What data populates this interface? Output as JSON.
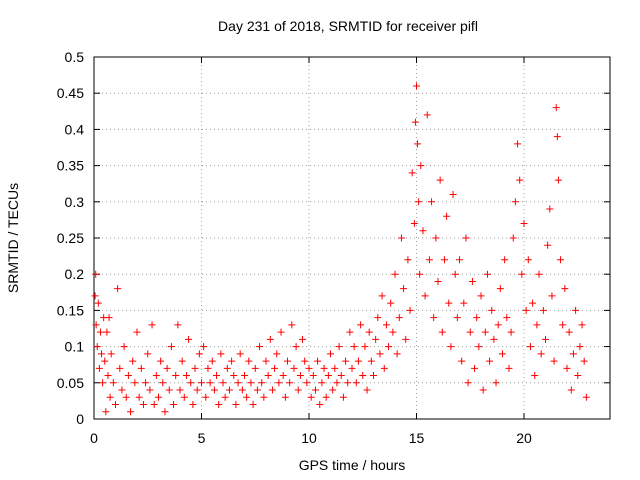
{
  "chart_data": {
    "type": "scatter",
    "title": "Day 231 of 2018, SRMTID for receiver pifl",
    "xlabel": "GPS time / hours",
    "ylabel": "SRMTID / TECUs",
    "xlim": [
      0,
      24
    ],
    "ylim": [
      0,
      0.5
    ],
    "xticks": [
      0,
      5,
      10,
      15,
      20
    ],
    "xtick_labels": [
      "0",
      "5",
      "10",
      "15",
      "20"
    ],
    "yticks": [
      0,
      0.05,
      0.1,
      0.15,
      0.2,
      0.25,
      0.3,
      0.35,
      0.4,
      0.45,
      0.5
    ],
    "ytick_labels": [
      "0",
      "0.05",
      "0.1",
      "0.15",
      "0.2",
      "0.25",
      "0.3",
      "0.35",
      "0.4",
      "0.45",
      "0.5"
    ],
    "grid": true,
    "marker": "plus",
    "color": "#ff0000",
    "series": [
      {
        "points": [
          [
            0.05,
            0.17
          ],
          [
            0.08,
            0.2
          ],
          [
            0.1,
            0.13
          ],
          [
            0.15,
            0.1
          ],
          [
            0.2,
            0.16
          ],
          [
            0.25,
            0.07
          ],
          [
            0.3,
            0.12
          ],
          [
            0.35,
            0.09
          ],
          [
            0.4,
            0.05
          ],
          [
            0.45,
            0.14
          ],
          [
            0.5,
            0.08
          ],
          [
            0.55,
            0.01
          ],
          [
            0.6,
            0.12
          ],
          [
            0.65,
            0.06
          ],
          [
            0.7,
            0.14
          ],
          [
            0.75,
            0.03
          ],
          [
            0.8,
            0.09
          ],
          [
            0.9,
            0.05
          ],
          [
            1.0,
            0.02
          ],
          [
            1.1,
            0.18
          ],
          [
            1.2,
            0.07
          ],
          [
            1.3,
            0.04
          ],
          [
            1.4,
            0.1
          ],
          [
            1.5,
            0.03
          ],
          [
            1.6,
            0.06
          ],
          [
            1.7,
            0.01
          ],
          [
            1.8,
            0.08
          ],
          [
            1.9,
            0.05
          ],
          [
            2.0,
            0.12
          ],
          [
            2.1,
            0.03
          ],
          [
            2.2,
            0.07
          ],
          [
            2.3,
            0.02
          ],
          [
            2.4,
            0.05
          ],
          [
            2.5,
            0.09
          ],
          [
            2.6,
            0.04
          ],
          [
            2.7,
            0.13
          ],
          [
            2.8,
            0.02
          ],
          [
            2.9,
            0.06
          ],
          [
            3.0,
            0.03
          ],
          [
            3.1,
            0.08
          ],
          [
            3.2,
            0.05
          ],
          [
            3.3,
            0.01
          ],
          [
            3.4,
            0.07
          ],
          [
            3.5,
            0.04
          ],
          [
            3.6,
            0.1
          ],
          [
            3.7,
            0.02
          ],
          [
            3.8,
            0.06
          ],
          [
            3.9,
            0.13
          ],
          [
            4.0,
            0.04
          ],
          [
            4.1,
            0.08
          ],
          [
            4.2,
            0.03
          ],
          [
            4.3,
            0.06
          ],
          [
            4.4,
            0.11
          ],
          [
            4.5,
            0.05
          ],
          [
            4.6,
            0.02
          ],
          [
            4.7,
            0.07
          ],
          [
            4.8,
            0.04
          ],
          [
            4.9,
            0.09
          ],
          [
            5.0,
            0.05
          ],
          [
            5.1,
            0.1
          ],
          [
            5.2,
            0.03
          ],
          [
            5.3,
            0.07
          ],
          [
            5.4,
            0.05
          ],
          [
            5.5,
            0.08
          ],
          [
            5.6,
            0.04
          ],
          [
            5.7,
            0.06
          ],
          [
            5.8,
            0.02
          ],
          [
            5.9,
            0.09
          ],
          [
            6.0,
            0.05
          ],
          [
            6.1,
            0.03
          ],
          [
            6.2,
            0.07
          ],
          [
            6.3,
            0.04
          ],
          [
            6.4,
            0.08
          ],
          [
            6.5,
            0.06
          ],
          [
            6.6,
            0.02
          ],
          [
            6.7,
            0.05
          ],
          [
            6.8,
            0.09
          ],
          [
            6.9,
            0.04
          ],
          [
            7.0,
            0.06
          ],
          [
            7.1,
            0.03
          ],
          [
            7.2,
            0.08
          ],
          [
            7.3,
            0.05
          ],
          [
            7.4,
            0.02
          ],
          [
            7.5,
            0.07
          ],
          [
            7.6,
            0.04
          ],
          [
            7.7,
            0.1
          ],
          [
            7.8,
            0.05
          ],
          [
            7.9,
            0.03
          ],
          [
            8.0,
            0.08
          ],
          [
            8.1,
            0.06
          ],
          [
            8.2,
            0.11
          ],
          [
            8.3,
            0.04
          ],
          [
            8.4,
            0.07
          ],
          [
            8.5,
            0.09
          ],
          [
            8.6,
            0.05
          ],
          [
            8.7,
            0.12
          ],
          [
            8.8,
            0.06
          ],
          [
            8.9,
            0.03
          ],
          [
            9.0,
            0.08
          ],
          [
            9.1,
            0.05
          ],
          [
            9.2,
            0.13
          ],
          [
            9.3,
            0.07
          ],
          [
            9.4,
            0.1
          ],
          [
            9.5,
            0.04
          ],
          [
            9.6,
            0.06
          ],
          [
            9.7,
            0.11
          ],
          [
            9.8,
            0.08
          ],
          [
            9.9,
            0.05
          ],
          [
            10.0,
            0.07
          ],
          [
            10.1,
            0.03
          ],
          [
            10.2,
            0.06
          ],
          [
            10.3,
            0.04
          ],
          [
            10.4,
            0.08
          ],
          [
            10.5,
            0.02
          ],
          [
            10.6,
            0.05
          ],
          [
            10.7,
            0.07
          ],
          [
            10.8,
            0.03
          ],
          [
            10.9,
            0.06
          ],
          [
            11.0,
            0.09
          ],
          [
            11.1,
            0.04
          ],
          [
            11.2,
            0.07
          ],
          [
            11.3,
            0.05
          ],
          [
            11.4,
            0.1
          ],
          [
            11.5,
            0.06
          ],
          [
            11.6,
            0.03
          ],
          [
            11.7,
            0.08
          ],
          [
            11.8,
            0.05
          ],
          [
            11.9,
            0.12
          ],
          [
            12.0,
            0.07
          ],
          [
            12.1,
            0.1
          ],
          [
            12.2,
            0.05
          ],
          [
            12.3,
            0.08
          ],
          [
            12.4,
            0.13
          ],
          [
            12.5,
            0.06
          ],
          [
            12.6,
            0.1
          ],
          [
            12.7,
            0.04
          ],
          [
            12.8,
            0.12
          ],
          [
            12.9,
            0.08
          ],
          [
            13.0,
            0.06
          ],
          [
            13.1,
            0.11
          ],
          [
            13.2,
            0.14
          ],
          [
            13.3,
            0.09
          ],
          [
            13.4,
            0.17
          ],
          [
            13.5,
            0.07
          ],
          [
            13.6,
            0.13
          ],
          [
            13.7,
            0.1
          ],
          [
            13.8,
            0.16
          ],
          [
            13.9,
            0.12
          ],
          [
            14.0,
            0.2
          ],
          [
            14.1,
            0.09
          ],
          [
            14.2,
            0.14
          ],
          [
            14.3,
            0.25
          ],
          [
            14.4,
            0.18
          ],
          [
            14.5,
            0.11
          ],
          [
            14.6,
            0.22
          ],
          [
            14.7,
            0.15
          ],
          [
            14.8,
            0.34
          ],
          [
            14.9,
            0.27
          ],
          [
            14.95,
            0.41
          ],
          [
            15.0,
            0.46
          ],
          [
            15.05,
            0.38
          ],
          [
            15.1,
            0.3
          ],
          [
            15.15,
            0.2
          ],
          [
            15.2,
            0.35
          ],
          [
            15.3,
            0.26
          ],
          [
            15.4,
            0.17
          ],
          [
            15.5,
            0.42
          ],
          [
            15.6,
            0.22
          ],
          [
            15.7,
            0.3
          ],
          [
            15.8,
            0.14
          ],
          [
            15.9,
            0.25
          ],
          [
            16.0,
            0.19
          ],
          [
            16.1,
            0.33
          ],
          [
            16.2,
            0.12
          ],
          [
            16.3,
            0.22
          ],
          [
            16.4,
            0.28
          ],
          [
            16.5,
            0.16
          ],
          [
            16.6,
            0.1
          ],
          [
            16.7,
            0.31
          ],
          [
            16.8,
            0.2
          ],
          [
            16.9,
            0.14
          ],
          [
            17.0,
            0.22
          ],
          [
            17.1,
            0.08
          ],
          [
            17.2,
            0.16
          ],
          [
            17.3,
            0.25
          ],
          [
            17.4,
            0.05
          ],
          [
            17.5,
            0.12
          ],
          [
            17.6,
            0.19
          ],
          [
            17.7,
            0.07
          ],
          [
            17.8,
            0.14
          ],
          [
            17.9,
            0.1
          ],
          [
            18.0,
            0.17
          ],
          [
            18.1,
            0.04
          ],
          [
            18.2,
            0.12
          ],
          [
            18.3,
            0.2
          ],
          [
            18.4,
            0.08
          ],
          [
            18.5,
            0.15
          ],
          [
            18.6,
            0.11
          ],
          [
            18.7,
            0.05
          ],
          [
            18.8,
            0.13
          ],
          [
            18.9,
            0.18
          ],
          [
            19.0,
            0.09
          ],
          [
            19.1,
            0.22
          ],
          [
            19.2,
            0.14
          ],
          [
            19.3,
            0.07
          ],
          [
            19.4,
            0.12
          ],
          [
            19.5,
            0.25
          ],
          [
            19.6,
            0.3
          ],
          [
            19.7,
            0.38
          ],
          [
            19.8,
            0.33
          ],
          [
            19.9,
            0.2
          ],
          [
            20.0,
            0.27
          ],
          [
            20.1,
            0.15
          ],
          [
            20.2,
            0.22
          ],
          [
            20.3,
            0.1
          ],
          [
            20.4,
            0.16
          ],
          [
            20.5,
            0.06
          ],
          [
            20.6,
            0.13
          ],
          [
            20.7,
            0.2
          ],
          [
            20.8,
            0.09
          ],
          [
            20.9,
            0.15
          ],
          [
            21.0,
            0.11
          ],
          [
            21.1,
            0.24
          ],
          [
            21.2,
            0.29
          ],
          [
            21.3,
            0.17
          ],
          [
            21.4,
            0.08
          ],
          [
            21.5,
            0.43
          ],
          [
            21.55,
            0.39
          ],
          [
            21.6,
            0.33
          ],
          [
            21.7,
            0.22
          ],
          [
            21.8,
            0.13
          ],
          [
            21.9,
            0.18
          ],
          [
            22.0,
            0.07
          ],
          [
            22.1,
            0.12
          ],
          [
            22.2,
            0.04
          ],
          [
            22.3,
            0.09
          ],
          [
            22.4,
            0.15
          ],
          [
            22.5,
            0.06
          ],
          [
            22.6,
            0.1
          ],
          [
            22.7,
            0.13
          ],
          [
            22.8,
            0.08
          ],
          [
            22.9,
            0.03
          ]
        ]
      }
    ]
  }
}
